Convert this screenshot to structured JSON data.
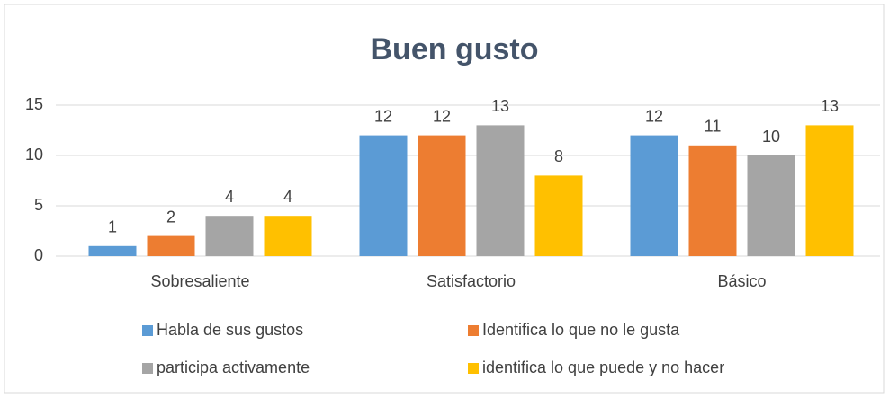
{
  "chart_data": {
    "type": "bar",
    "title": "Buen gusto",
    "categories": [
      "Sobresaliente",
      "Satisfactorio",
      "Básico"
    ],
    "series": [
      {
        "name": "Habla de sus gustos",
        "color": "#5b9bd5",
        "values": [
          1,
          12,
          12
        ]
      },
      {
        "name": "Identifica lo que no le gusta",
        "color": "#ed7d31",
        "values": [
          2,
          12,
          11
        ]
      },
      {
        "name": "participa activamente",
        "color": "#a5a5a5",
        "values": [
          4,
          13,
          10
        ]
      },
      {
        "name": "identifica lo que puede y no hacer",
        "color": "#ffc000",
        "values": [
          4,
          8,
          13
        ]
      }
    ],
    "ylim": [
      0,
      15
    ],
    "yticks": [
      0,
      5,
      10,
      15
    ],
    "grid": true,
    "legend": "bottom"
  }
}
